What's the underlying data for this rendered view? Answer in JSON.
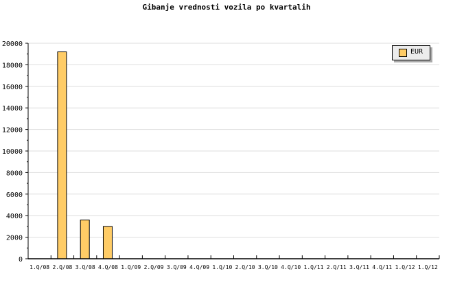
{
  "chart_data": {
    "type": "bar",
    "title": "Gibanje vrednosti vozila po kvartalih",
    "categories": [
      "1.Q/08",
      "2.Q/08",
      "3.Q/08",
      "4.Q/08",
      "1.Q/09",
      "2.Q/09",
      "3.Q/09",
      "4.Q/09",
      "1.Q/10",
      "2.Q/10",
      "3.Q/10",
      "4.Q/10",
      "1.Q/11",
      "2.Q/11",
      "3.Q/11",
      "4.Q/11",
      "1.Q/12",
      "1.Q/12"
    ],
    "series": [
      {
        "name": "EUR",
        "values": [
          0,
          19200,
          3600,
          3000,
          0,
          0,
          0,
          0,
          0,
          0,
          0,
          0,
          0,
          0,
          0,
          0,
          0,
          0
        ]
      }
    ],
    "ylim": [
      0,
      20000
    ],
    "yticks": [
      0,
      2000,
      4000,
      6000,
      8000,
      10000,
      12000,
      14000,
      16000,
      18000,
      20000
    ],
    "grid": true,
    "legend": "top-right",
    "colors": {
      "bar": "#ffcc66",
      "grid": "#dddddd"
    }
  }
}
